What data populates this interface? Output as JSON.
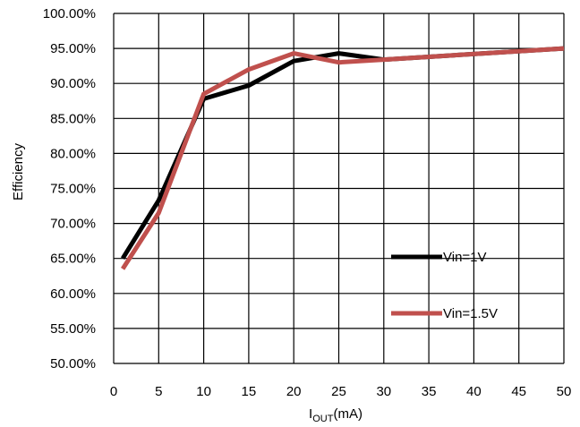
{
  "chart_data": {
    "type": "line",
    "title": "",
    "xlabel": "I_OUT(mA)",
    "xlabel_main": "I",
    "xlabel_sub": "OUT",
    "xlabel_tail": "(mA)",
    "ylabel": "Efficiency",
    "xlim": [
      0,
      50
    ],
    "ylim": [
      50,
      100
    ],
    "x_ticks": [
      "0",
      "5",
      "10",
      "15",
      "20",
      "25",
      "30",
      "35",
      "40",
      "45",
      "50"
    ],
    "y_ticks": [
      "50.00%",
      "55.00%",
      "60.00%",
      "65.00%",
      "70.00%",
      "75.00%",
      "80.00%",
      "85.00%",
      "90.00%",
      "95.00%",
      "100.00%"
    ],
    "grid": true,
    "legend_position": "lower-right",
    "series": [
      {
        "name": "Vin=1V",
        "color": "#000000",
        "x": [
          1,
          5,
          10,
          15,
          20,
          25,
          30,
          50
        ],
        "y": [
          65.0,
          73.3,
          87.8,
          89.7,
          93.2,
          94.3,
          93.4,
          95.0
        ]
      },
      {
        "name": "Vin=1.5V",
        "color": "#c0504d",
        "x": [
          1,
          5,
          10,
          15,
          20,
          25,
          30,
          50
        ],
        "y": [
          63.5,
          71.5,
          88.5,
          92.0,
          94.3,
          93.0,
          93.4,
          95.0
        ]
      }
    ]
  }
}
